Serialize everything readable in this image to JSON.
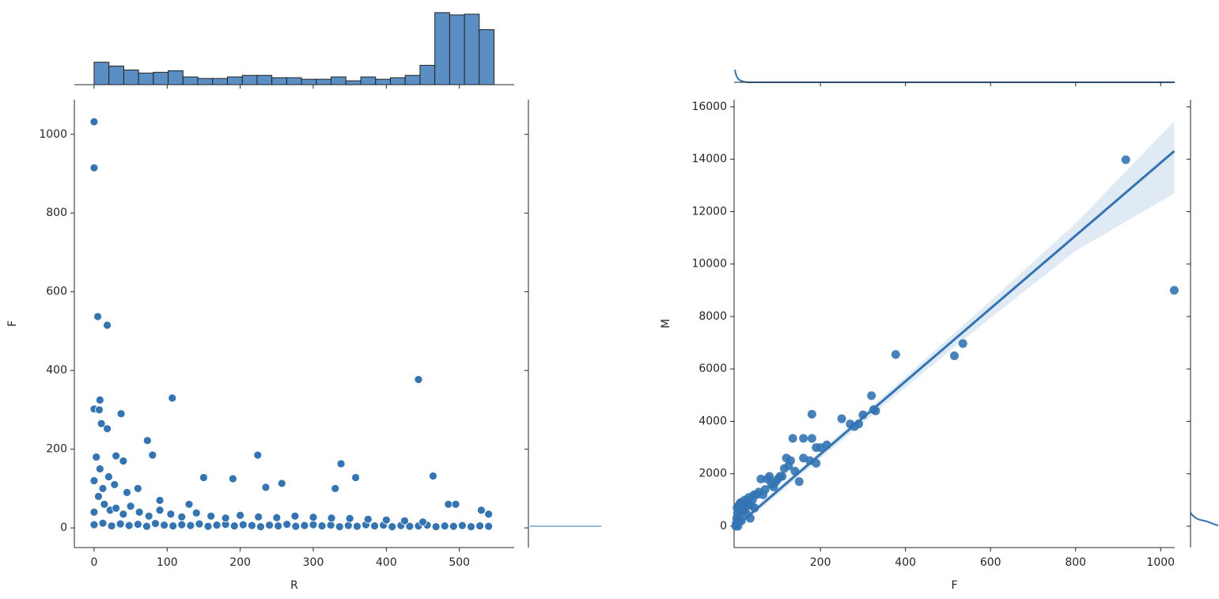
{
  "chart_data": [
    {
      "type": "scatter",
      "x_label": "R",
      "y_label": "F",
      "color": "#3274b4",
      "xlim": [
        -27,
        575
      ],
      "ylim": [
        -50,
        1088
      ],
      "xticks": [
        0,
        100,
        200,
        300,
        400,
        500
      ],
      "yticks": [
        0,
        200,
        400,
        600,
        800,
        1000
      ],
      "x": [
        0,
        12,
        24,
        36,
        48,
        60,
        72,
        84,
        96,
        108,
        120,
        132,
        144,
        156,
        168,
        180,
        192,
        204,
        216,
        228,
        240,
        252,
        264,
        276,
        288,
        300,
        312,
        324,
        336,
        348,
        360,
        372,
        384,
        396,
        408,
        420,
        432,
        444,
        456,
        468,
        480,
        492,
        504,
        516,
        528,
        540,
        0,
        6,
        14,
        22,
        30,
        40,
        50,
        62,
        75,
        90,
        105,
        120,
        140,
        160,
        180,
        200,
        225,
        250,
        275,
        300,
        325,
        350,
        375,
        400,
        425,
        450,
        0,
        3,
        8,
        12,
        20,
        28,
        45,
        60,
        90,
        130,
        0,
        0,
        5,
        18,
        0,
        7,
        8,
        10,
        18,
        37,
        107,
        73,
        444,
        224,
        338,
        358,
        464,
        257,
        235,
        330,
        485,
        495,
        530,
        540,
        150,
        190,
        30,
        40,
        80
      ],
      "y": [
        8,
        12,
        5,
        10,
        6,
        9,
        4,
        11,
        7,
        5,
        8,
        6,
        10,
        4,
        7,
        9,
        5,
        8,
        6,
        3,
        7,
        5,
        9,
        4,
        6,
        8,
        5,
        7,
        3,
        6,
        4,
        8,
        5,
        7,
        3,
        6,
        4,
        5,
        7,
        3,
        5,
        4,
        6,
        3,
        5,
        4,
        40,
        80,
        60,
        45,
        50,
        35,
        55,
        40,
        30,
        45,
        35,
        28,
        38,
        30,
        25,
        32,
        28,
        26,
        30,
        27,
        25,
        24,
        22,
        20,
        18,
        15,
        120,
        180,
        150,
        100,
        130,
        110,
        90,
        100,
        70,
        60,
        1032,
        915,
        537,
        515,
        302,
        300,
        325,
        265,
        252,
        290,
        330,
        222,
        377,
        185,
        163,
        128,
        132,
        113,
        103,
        100,
        60,
        60,
        45,
        35,
        128,
        125,
        183,
        170,
        185
      ],
      "marginal_x": {
        "type": "hist",
        "ylim": [
          0,
          95
        ],
        "bins": [
          0,
          20.3,
          40.6,
          60.8,
          81.1,
          101.4,
          121.7,
          141.9,
          162.2,
          182.5,
          202.8,
          223.1,
          243.3,
          263.6,
          283.9,
          304.2,
          324.4,
          344.7,
          365,
          385.3,
          405.6,
          425.8,
          446.1,
          466.4,
          486.7,
          506.9,
          527.2,
          547.5
        ],
        "counts": [
          29,
          24,
          19,
          15,
          16,
          18,
          10,
          8,
          8,
          10,
          12,
          12,
          9,
          9,
          7,
          7,
          10,
          5,
          10,
          7,
          9,
          12,
          25,
          93,
          90,
          91,
          71
        ]
      }
    },
    {
      "type": "regression",
      "x_label": "F",
      "y_label": "M",
      "color": "#3274b4",
      "xlim": [
        -3,
        1033
      ],
      "ylim": [
        -815,
        16270
      ],
      "xticks": [
        200,
        400,
        600,
        800,
        1000
      ],
      "yticks": [
        0,
        2000,
        4000,
        6000,
        8000,
        10000,
        12000,
        14000,
        16000
      ],
      "x": [
        918,
        1032,
        377,
        515,
        535,
        180,
        250,
        320,
        270,
        280,
        290,
        300,
        325,
        330,
        135,
        160,
        180,
        190,
        200,
        215,
        190,
        175,
        160,
        120,
        150,
        100,
        80,
        60,
        50,
        40,
        30,
        20,
        10,
        5,
        2,
        15,
        25,
        70,
        90,
        110,
        140,
        45,
        35,
        8,
        3,
        5,
        4,
        12,
        18,
        22,
        28,
        32,
        36,
        44,
        55,
        65,
        75,
        85,
        95,
        105,
        115,
        125,
        130,
        1,
        6,
        14
      ],
      "y": [
        13980,
        9000,
        6550,
        6500,
        6970,
        4270,
        4100,
        4980,
        3900,
        3800,
        3900,
        4250,
        4450,
        4400,
        3350,
        3350,
        3350,
        3000,
        3000,
        3100,
        2400,
        2500,
        2600,
        2600,
        1700,
        1800,
        1900,
        1800,
        1200,
        1000,
        800,
        600,
        400,
        200,
        100,
        900,
        500,
        1400,
        1500,
        1900,
        2100,
        700,
        300,
        800,
        300,
        500,
        700,
        900,
        700,
        1000,
        900,
        1100,
        800,
        1200,
        1300,
        1200,
        1800,
        1600,
        1700,
        1900,
        2200,
        2300,
        2500,
        0,
        0,
        200
      ],
      "regression": {
        "x": [
          1,
          1032
        ],
        "y": [
          -20,
          14310
        ]
      },
      "ci": {
        "x": [
          1,
          200,
          400,
          600,
          800,
          1032
        ],
        "lower": [
          -150,
          2580,
          5300,
          7950,
          10500,
          12700
        ],
        "upper": [
          100,
          2870,
          5700,
          8600,
          11550,
          15450
        ]
      }
    }
  ]
}
